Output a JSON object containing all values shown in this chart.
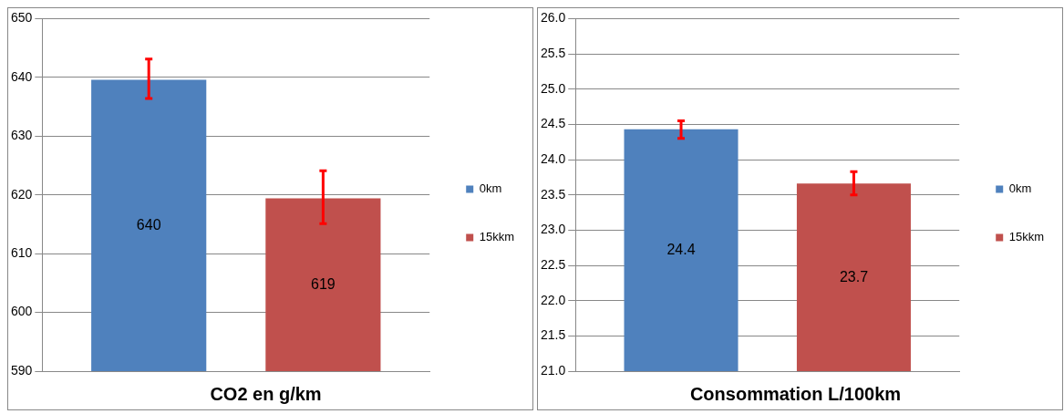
{
  "chart_data": [
    {
      "type": "bar",
      "title": "CO2 en g/km",
      "categories": [
        null
      ],
      "series": [
        {
          "name": "0km",
          "color": "#4f81bd",
          "values": [
            639.6
          ],
          "errors": [
            [
              636.4,
              643.1
            ]
          ],
          "value_labels": [
            "640"
          ]
        },
        {
          "name": "15kkm",
          "color": "#c0504d",
          "values": [
            619.4
          ],
          "errors": [
            [
              615.1,
              624.1
            ]
          ],
          "value_labels": [
            "619"
          ]
        }
      ],
      "ylim": [
        590,
        650
      ],
      "yticks": [
        590,
        600,
        610,
        620,
        630,
        640,
        650
      ],
      "grid": "y",
      "legend": "right"
    },
    {
      "type": "bar",
      "title": "Consommation L/100km",
      "categories": [
        null
      ],
      "series": [
        {
          "name": "0km",
          "color": "#4f81bd",
          "values": [
            24.43
          ],
          "errors": [
            [
              24.3,
              24.55
            ]
          ],
          "value_labels": [
            "24.4"
          ]
        },
        {
          "name": "15kkm",
          "color": "#c0504d",
          "values": [
            23.66
          ],
          "errors": [
            [
              23.5,
              23.83
            ]
          ],
          "value_labels": [
            "23.7"
          ]
        }
      ],
      "ylim": [
        21,
        26
      ],
      "yticks": [
        {
          "value": 21,
          "label": "21.0"
        },
        {
          "value": 21.5,
          "label": "21.5"
        },
        {
          "value": 22,
          "label": "22.0"
        },
        {
          "value": 22.5,
          "label": "22.5"
        },
        {
          "value": 23,
          "label": "23.0"
        },
        {
          "value": 23.5,
          "label": "23.5"
        },
        {
          "value": 24,
          "label": "24.0"
        },
        {
          "value": 24.5,
          "label": "24.5"
        },
        {
          "value": 25,
          "label": "25.0"
        },
        {
          "value": 25.5,
          "label": "25.5"
        },
        {
          "value": 26,
          "label": "26.0"
        }
      ],
      "grid": "y",
      "legend": "right"
    }
  ]
}
